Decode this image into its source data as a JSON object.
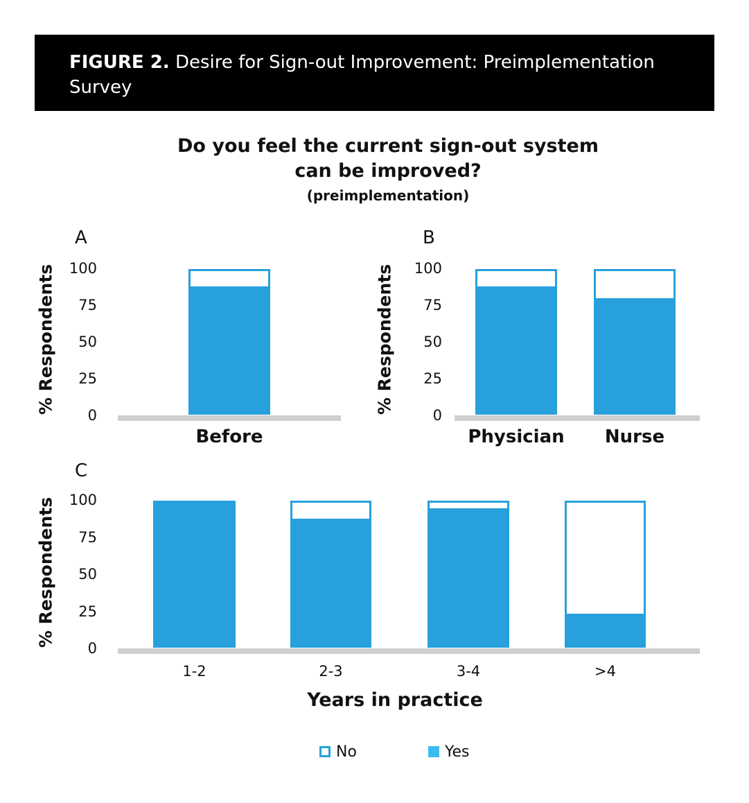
{
  "figure": {
    "label": "FIGURE 2.",
    "caption": "Desire for Sign-out Improvement: Preimplementation Survey"
  },
  "title": "Do you feel the current sign-out system can be improved?",
  "subtitle": "(preimplementation)",
  "colors": {
    "yes": "#28a0dc",
    "no_border": "#28a0dc",
    "legend_yes": "#3bbbf0",
    "baseline": "#cfcfcf"
  },
  "chart_data": [
    {
      "panel": "A",
      "type": "bar",
      "stacked": true,
      "categories": [
        "Before"
      ],
      "ylabel": "% Respondents",
      "yticks": [
        0,
        25,
        50,
        75,
        100
      ],
      "ylim": [
        0,
        100
      ],
      "series": [
        {
          "name": "Yes",
          "values": [
            88
          ]
        },
        {
          "name": "No",
          "values": [
            12
          ]
        }
      ]
    },
    {
      "panel": "B",
      "type": "bar",
      "stacked": true,
      "categories": [
        "Physician",
        "Nurse"
      ],
      "ylabel": "% Respondents",
      "yticks": [
        0,
        25,
        50,
        75,
        100
      ],
      "ylim": [
        0,
        100
      ],
      "series": [
        {
          "name": "Yes",
          "values": [
            88,
            80
          ]
        },
        {
          "name": "No",
          "values": [
            12,
            20
          ]
        }
      ]
    },
    {
      "panel": "C",
      "type": "bar",
      "stacked": true,
      "categories": [
        "1-2",
        "2-3",
        "3-4",
        ">4"
      ],
      "xlabel": "Years in practice",
      "ylabel": "% Respondents",
      "yticks": [
        0,
        25,
        50,
        75,
        100
      ],
      "ylim": [
        0,
        100
      ],
      "series": [
        {
          "name": "Yes",
          "values": [
            100,
            88,
            95,
            24
          ]
        },
        {
          "name": "No",
          "values": [
            0,
            12,
            5,
            76
          ]
        }
      ]
    }
  ],
  "legend": {
    "no": "No",
    "yes": "Yes"
  }
}
